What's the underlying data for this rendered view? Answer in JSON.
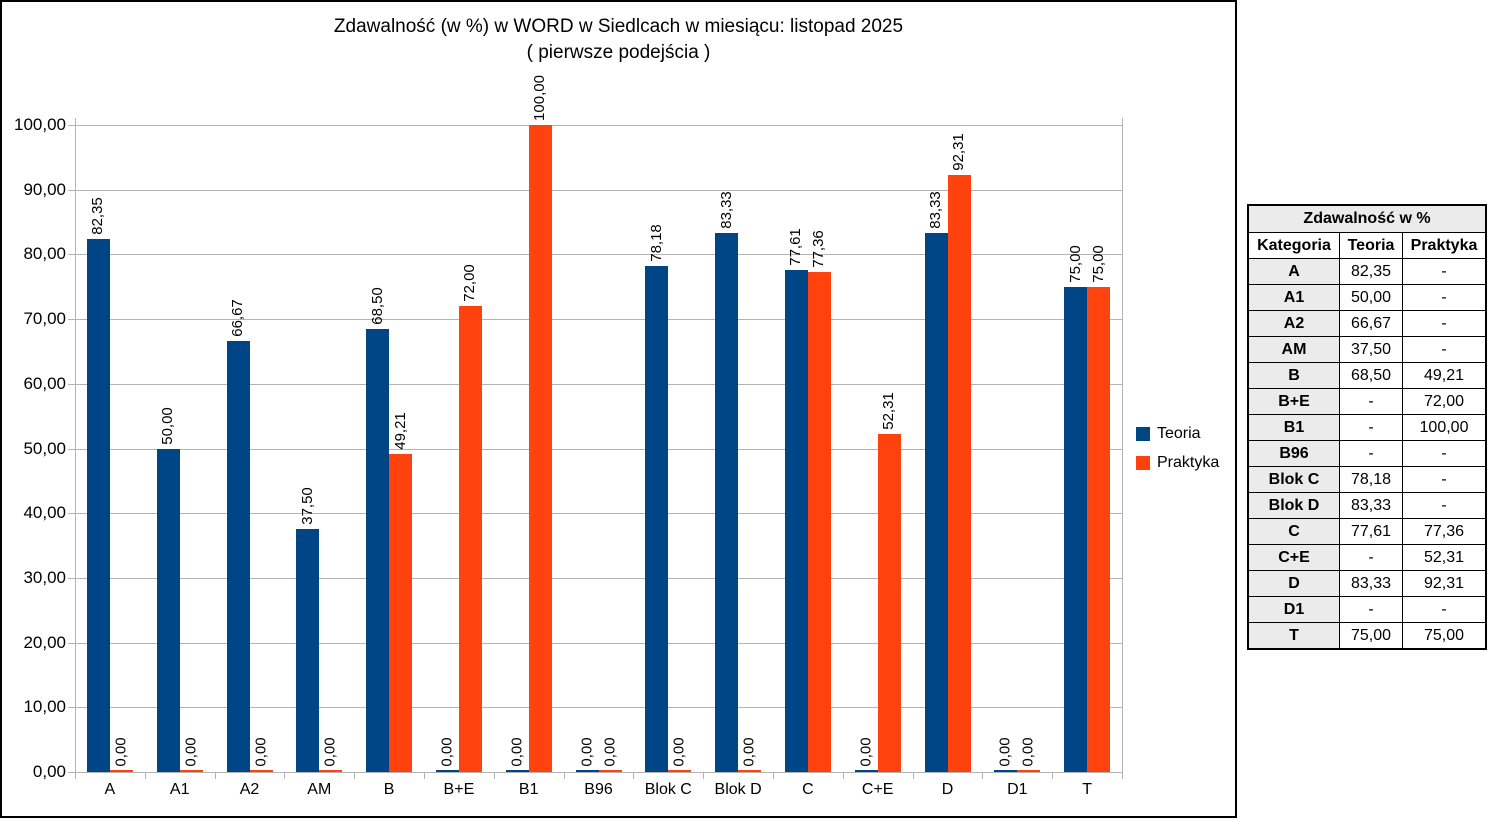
{
  "chart": {
    "title_line1": "Zdawalność (w %) w WORD w Siedlcach w miesiącu: listopad 2025",
    "title_line2": "( pierwsze podejścia )"
  },
  "chart_data": {
    "type": "bar",
    "title": "Zdawalność (w %) w WORD w Siedlcach w miesiącu: listopad 2025 ( pierwsze podejścia )",
    "categories": [
      "A",
      "A1",
      "A2",
      "AM",
      "B",
      "B+E",
      "B1",
      "B96",
      "Blok C",
      "Blok D",
      "C",
      "C+E",
      "D",
      "D1",
      "T"
    ],
    "series": [
      {
        "name": "Teoria",
        "color": "#004586",
        "values": [
          82.35,
          50.0,
          66.67,
          37.5,
          68.5,
          0.0,
          0.0,
          0.0,
          78.18,
          83.33,
          77.61,
          0.0,
          83.33,
          0.0,
          75.0
        ]
      },
      {
        "name": "Praktyka",
        "color": "#ff420e",
        "values": [
          0.0,
          0.0,
          0.0,
          0.0,
          49.21,
          72.0,
          100.0,
          0.0,
          0.0,
          0.0,
          77.36,
          52.31,
          92.31,
          0.0,
          75.0
        ]
      }
    ],
    "ylim": [
      0,
      100
    ],
    "ytick_step": 10,
    "ytick_labels": [
      "0,00",
      "10,00",
      "20,00",
      "30,00",
      "40,00",
      "50,00",
      "60,00",
      "70,00",
      "80,00",
      "90,00",
      "100,00"
    ],
    "grid": true,
    "legend_position": "right",
    "data_labels": "rotated 90deg, comma decimal, two decimals"
  },
  "legend": {
    "items": [
      {
        "label": "Teoria",
        "color": "#004586"
      },
      {
        "label": "Praktyka",
        "color": "#ff420e"
      }
    ]
  },
  "table": {
    "title": "Zdawalność w %",
    "columns": [
      "Kategoria",
      "Teoria",
      "Praktyka"
    ],
    "rows": [
      [
        "A",
        "82,35",
        "-"
      ],
      [
        "A1",
        "50,00",
        "-"
      ],
      [
        "A2",
        "66,67",
        "-"
      ],
      [
        "AM",
        "37,50",
        "-"
      ],
      [
        "B",
        "68,50",
        "49,21"
      ],
      [
        "B+E",
        "-",
        "72,00"
      ],
      [
        "B1",
        "-",
        "100,00"
      ],
      [
        "B96",
        "-",
        "-"
      ],
      [
        "Blok C",
        "78,18",
        "-"
      ],
      [
        "Blok D",
        "83,33",
        "-"
      ],
      [
        "C",
        "77,61",
        "77,36"
      ],
      [
        "C+E",
        "-",
        "52,31"
      ],
      [
        "D",
        "83,33",
        "92,31"
      ],
      [
        "D1",
        "-",
        "-"
      ],
      [
        "T",
        "75,00",
        "75,00"
      ]
    ]
  },
  "colors": {
    "teoria": "#004586",
    "praktyka": "#ff420e",
    "grid": "#b3b3b3",
    "table_header_bg": "#ebebeb"
  }
}
